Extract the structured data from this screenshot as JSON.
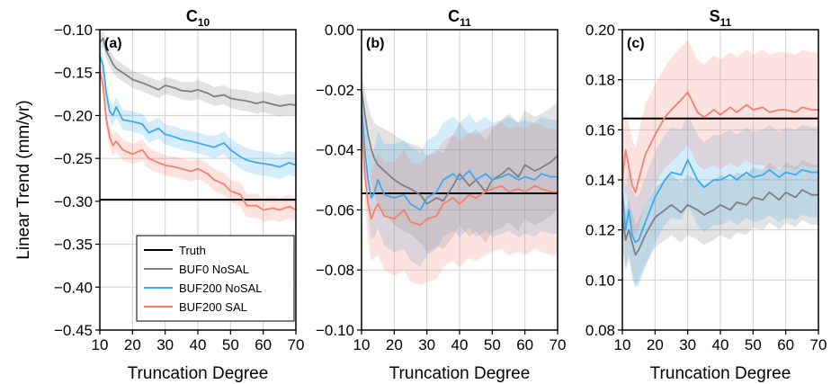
{
  "chart_data": [
    {
      "type": "line",
      "panel_label": "(a)",
      "title_base": "C",
      "title_sub": "10",
      "ylabel": "Linear Trend  (mm/yr)",
      "xlabel": "Truncation Degree",
      "xlim": [
        10,
        70
      ],
      "ylim": [
        -0.45,
        -0.1
      ],
      "xticks": [
        10,
        20,
        30,
        40,
        50,
        60,
        70
      ],
      "xtick_labels": [
        "10",
        "20",
        "30",
        "40",
        "50",
        "60",
        "70"
      ],
      "yticks": [
        -0.45,
        -0.4,
        -0.35,
        -0.3,
        -0.25,
        -0.2,
        -0.15,
        -0.1
      ],
      "ytick_labels": [
        "−0.45",
        "−0.40",
        "−0.35",
        "−0.30",
        "−0.25",
        "−0.20",
        "−0.15",
        "−0.10"
      ],
      "grid": true,
      "truth": -0.298,
      "x": [
        10,
        11,
        12,
        13,
        14,
        15,
        17,
        20,
        23,
        25,
        28,
        30,
        33,
        35,
        38,
        40,
        43,
        45,
        48,
        50,
        53,
        55,
        58,
        60,
        63,
        65,
        68,
        70
      ],
      "series": [
        {
          "name": "BUF0 NoSAL",
          "color": "#808080",
          "values": [
            -0.115,
            -0.11,
            -0.125,
            -0.132,
            -0.14,
            -0.145,
            -0.15,
            -0.158,
            -0.162,
            -0.165,
            -0.17,
            -0.165,
            -0.168,
            -0.171,
            -0.172,
            -0.17,
            -0.174,
            -0.178,
            -0.176,
            -0.18,
            -0.182,
            -0.183,
            -0.186,
            -0.184,
            -0.187,
            -0.189,
            -0.187,
            -0.188
          ],
          "band": [
            0.01,
            0.01,
            0.01,
            0.01,
            0.01,
            0.01,
            0.01,
            0.01,
            0.01,
            0.01,
            0.01,
            0.01,
            0.01,
            0.01,
            0.011,
            0.011,
            0.011,
            0.011,
            0.011,
            0.011,
            0.012,
            0.012,
            0.012,
            0.012,
            0.012,
            0.012,
            0.012,
            0.012
          ]
        },
        {
          "name": "BUF200 NoSAL",
          "color": "#3fa9ef",
          "values": [
            -0.13,
            -0.142,
            -0.175,
            -0.195,
            -0.2,
            -0.19,
            -0.205,
            -0.207,
            -0.21,
            -0.22,
            -0.215,
            -0.222,
            -0.225,
            -0.228,
            -0.23,
            -0.232,
            -0.235,
            -0.237,
            -0.232,
            -0.24,
            -0.248,
            -0.252,
            -0.255,
            -0.256,
            -0.258,
            -0.26,
            -0.255,
            -0.258
          ],
          "band": [
            0.012,
            0.012,
            0.012,
            0.012,
            0.012,
            0.012,
            0.012,
            0.012,
            0.012,
            0.012,
            0.012,
            0.012,
            0.012,
            0.012,
            0.012,
            0.012,
            0.012,
            0.013,
            0.013,
            0.013,
            0.014,
            0.014,
            0.014,
            0.014,
            0.014,
            0.014,
            0.014,
            0.014
          ]
        },
        {
          "name": "BUF200 SAL",
          "color": "#f4806e",
          "values": [
            -0.148,
            -0.165,
            -0.205,
            -0.225,
            -0.235,
            -0.23,
            -0.24,
            -0.245,
            -0.24,
            -0.25,
            -0.255,
            -0.258,
            -0.26,
            -0.262,
            -0.265,
            -0.262,
            -0.268,
            -0.275,
            -0.28,
            -0.288,
            -0.292,
            -0.305,
            -0.305,
            -0.31,
            -0.308,
            -0.31,
            -0.306,
            -0.31
          ],
          "band": [
            0.012,
            0.012,
            0.012,
            0.012,
            0.012,
            0.012,
            0.012,
            0.012,
            0.012,
            0.012,
            0.012,
            0.012,
            0.012,
            0.012,
            0.012,
            0.012,
            0.012,
            0.013,
            0.013,
            0.013,
            0.014,
            0.014,
            0.014,
            0.014,
            0.014,
            0.014,
            0.014,
            0.014
          ]
        }
      ]
    },
    {
      "type": "line",
      "panel_label": "(b)",
      "title_base": "C",
      "title_sub": "11",
      "xlabel": "Truncation Degree",
      "xlim": [
        10,
        70
      ],
      "ylim": [
        -0.1,
        0.0
      ],
      "xticks": [
        10,
        20,
        30,
        40,
        50,
        60,
        70
      ],
      "xtick_labels": [
        "10",
        "20",
        "30",
        "40",
        "50",
        "60",
        "70"
      ],
      "yticks": [
        -0.1,
        -0.08,
        -0.06,
        -0.04,
        -0.02,
        0.0
      ],
      "ytick_labels": [
        "−0.10",
        "−0.08",
        "−0.06",
        "−0.04",
        "−0.02",
        "0.00"
      ],
      "grid": true,
      "truth": -0.0545,
      "x": [
        10,
        11,
        12,
        13,
        14,
        15,
        17,
        20,
        23,
        25,
        28,
        30,
        33,
        35,
        38,
        40,
        43,
        45,
        48,
        50,
        53,
        55,
        58,
        60,
        63,
        65,
        68,
        70
      ],
      "series": [
        {
          "name": "BUF0 NoSAL",
          "color": "#808080",
          "values": [
            -0.02,
            -0.028,
            -0.035,
            -0.04,
            -0.043,
            -0.045,
            -0.047,
            -0.05,
            -0.052,
            -0.053,
            -0.055,
            -0.058,
            -0.056,
            -0.057,
            -0.052,
            -0.048,
            -0.052,
            -0.05,
            -0.054,
            -0.05,
            -0.048,
            -0.046,
            -0.049,
            -0.045,
            -0.047,
            -0.046,
            -0.044,
            -0.042
          ],
          "band": [
            0.006,
            0.008,
            0.01,
            0.011,
            0.012,
            0.013,
            0.014,
            0.015,
            0.015,
            0.015,
            0.016,
            0.016,
            0.016,
            0.016,
            0.017,
            0.017,
            0.017,
            0.017,
            0.017,
            0.017,
            0.018,
            0.018,
            0.018,
            0.018,
            0.018,
            0.018,
            0.018,
            0.018
          ]
        },
        {
          "name": "BUF200 NoSAL",
          "color": "#3fa9ef",
          "values": [
            -0.025,
            -0.04,
            -0.05,
            -0.056,
            -0.054,
            -0.05,
            -0.055,
            -0.056,
            -0.055,
            -0.058,
            -0.06,
            -0.056,
            -0.054,
            -0.05,
            -0.048,
            -0.05,
            -0.047,
            -0.05,
            -0.048,
            -0.05,
            -0.049,
            -0.048,
            -0.05,
            -0.049,
            -0.05,
            -0.048,
            -0.049,
            -0.049
          ],
          "band": [
            0.008,
            0.01,
            0.012,
            0.014,
            0.015,
            0.016,
            0.017,
            0.018,
            0.018,
            0.019,
            0.019,
            0.019,
            0.019,
            0.019,
            0.019,
            0.019,
            0.019,
            0.019,
            0.019,
            0.019,
            0.019,
            0.019,
            0.019,
            0.019,
            0.019,
            0.019,
            0.019,
            0.019
          ]
        },
        {
          "name": "BUF200 SAL",
          "color": "#f4806e",
          "values": [
            -0.03,
            -0.048,
            -0.058,
            -0.063,
            -0.06,
            -0.058,
            -0.062,
            -0.063,
            -0.06,
            -0.064,
            -0.065,
            -0.063,
            -0.062,
            -0.058,
            -0.056,
            -0.058,
            -0.055,
            -0.056,
            -0.054,
            -0.053,
            -0.052,
            -0.054,
            -0.053,
            -0.054,
            -0.052,
            -0.053,
            -0.054,
            -0.054
          ],
          "band": [
            0.008,
            0.01,
            0.012,
            0.014,
            0.016,
            0.017,
            0.018,
            0.019,
            0.02,
            0.02,
            0.02,
            0.021,
            0.021,
            0.021,
            0.021,
            0.021,
            0.021,
            0.021,
            0.021,
            0.021,
            0.021,
            0.021,
            0.021,
            0.021,
            0.021,
            0.021,
            0.021,
            0.021
          ]
        }
      ]
    },
    {
      "type": "line",
      "panel_label": "(c)",
      "title_base": "S",
      "title_sub": "11",
      "xlabel": "Truncation Degree",
      "xlim": [
        10,
        70
      ],
      "ylim": [
        0.08,
        0.2
      ],
      "xticks": [
        10,
        20,
        30,
        40,
        50,
        60,
        70
      ],
      "xtick_labels": [
        "10",
        "20",
        "30",
        "40",
        "50",
        "60",
        "70"
      ],
      "yticks": [
        0.08,
        0.1,
        0.12,
        0.14,
        0.16,
        0.18,
        0.2
      ],
      "ytick_labels": [
        "0.08",
        "0.10",
        "0.12",
        "0.14",
        "0.16",
        "0.18",
        "0.20"
      ],
      "grid": true,
      "truth": 0.1645,
      "x": [
        10,
        11,
        12,
        13,
        14,
        15,
        17,
        20,
        23,
        25,
        28,
        30,
        33,
        35,
        38,
        40,
        43,
        45,
        48,
        50,
        53,
        55,
        58,
        60,
        63,
        65,
        68,
        70
      ],
      "series": [
        {
          "name": "BUF0 NoSAL",
          "color": "#808080",
          "values": [
            0.125,
            0.116,
            0.12,
            0.115,
            0.11,
            0.112,
            0.118,
            0.125,
            0.128,
            0.13,
            0.127,
            0.13,
            0.128,
            0.126,
            0.128,
            0.13,
            0.128,
            0.131,
            0.13,
            0.133,
            0.132,
            0.135,
            0.132,
            0.135,
            0.133,
            0.136,
            0.134,
            0.134
          ],
          "band": [
            0.012,
            0.012,
            0.012,
            0.012,
            0.012,
            0.012,
            0.012,
            0.012,
            0.012,
            0.012,
            0.012,
            0.012,
            0.012,
            0.012,
            0.012,
            0.012,
            0.012,
            0.012,
            0.012,
            0.012,
            0.012,
            0.012,
            0.012,
            0.012,
            0.012,
            0.012,
            0.012,
            0.012
          ]
        },
        {
          "name": "BUF200 NoSAL",
          "color": "#3fa9ef",
          "values": [
            0.135,
            0.12,
            0.128,
            0.118,
            0.115,
            0.116,
            0.123,
            0.133,
            0.14,
            0.143,
            0.142,
            0.148,
            0.14,
            0.137,
            0.14,
            0.14,
            0.142,
            0.14,
            0.143,
            0.141,
            0.142,
            0.144,
            0.141,
            0.143,
            0.142,
            0.144,
            0.143,
            0.143
          ],
          "band": [
            0.015,
            0.016,
            0.017,
            0.018,
            0.018,
            0.018,
            0.018,
            0.018,
            0.018,
            0.018,
            0.018,
            0.018,
            0.018,
            0.018,
            0.018,
            0.018,
            0.018,
            0.018,
            0.018,
            0.018,
            0.018,
            0.018,
            0.018,
            0.018,
            0.018,
            0.018,
            0.018,
            0.018
          ]
        },
        {
          "name": "BUF200 SAL",
          "color": "#f4806e",
          "values": [
            0.14,
            0.152,
            0.145,
            0.138,
            0.135,
            0.14,
            0.15,
            0.158,
            0.165,
            0.168,
            0.172,
            0.175,
            0.167,
            0.165,
            0.168,
            0.166,
            0.169,
            0.167,
            0.17,
            0.168,
            0.169,
            0.167,
            0.168,
            0.168,
            0.167,
            0.169,
            0.168,
            0.168
          ],
          "band": [
            0.016,
            0.016,
            0.017,
            0.018,
            0.018,
            0.019,
            0.02,
            0.02,
            0.02,
            0.021,
            0.021,
            0.021,
            0.021,
            0.021,
            0.022,
            0.022,
            0.022,
            0.022,
            0.022,
            0.022,
            0.023,
            0.023,
            0.023,
            0.023,
            0.023,
            0.023,
            0.023,
            0.023
          ]
        }
      ]
    }
  ],
  "legend": {
    "placement": "lower-left of panel (a)",
    "entries": [
      {
        "label": "Truth",
        "color": "#000000"
      },
      {
        "label": "BUF0 NoSAL",
        "color": "#808080"
      },
      {
        "label": "BUF200 NoSAL",
        "color": "#3fa9ef"
      },
      {
        "label": "BUF200 SAL",
        "color": "#f4806e"
      }
    ]
  }
}
